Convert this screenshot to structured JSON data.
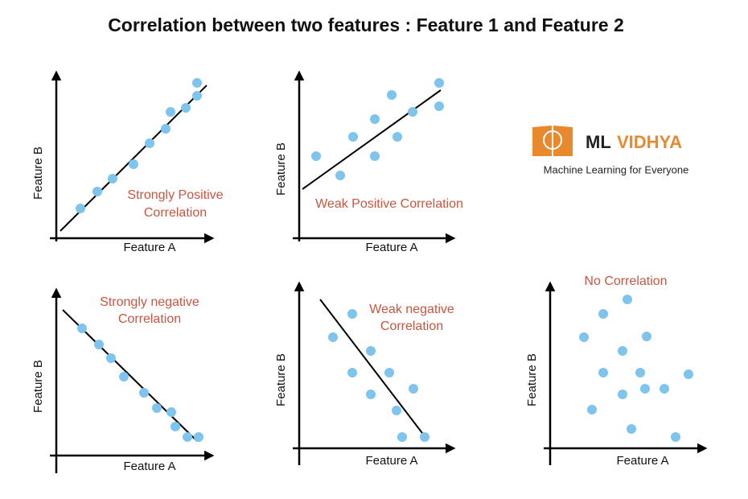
{
  "title": "Correlation between two features : Feature 1 and Feature 2",
  "panels": [
    {
      "label": [
        "Strongly Positive",
        "Correlation"
      ],
      "x_label": "Feature A",
      "y_label": "Feature B"
    },
    {
      "label": [
        "Weak Positive Correlation"
      ],
      "x_label": "Feature A",
      "y_label": "Feature B"
    },
    {
      "label": [
        "Strongly negative",
        "Correlation"
      ],
      "x_label": "Feature A",
      "y_label": "Feature B"
    },
    {
      "label": [
        "Weak negative",
        "Correlation"
      ],
      "x_label": "Feature A",
      "y_label": "Feature B"
    },
    {
      "label": [
        "No Correlation"
      ],
      "x_label": "Feature A",
      "y_label": "Feature B"
    }
  ],
  "logo": {
    "prefix": "ML",
    "name": "VIDHYA",
    "tagline": "Machine Learning for Everyone"
  }
}
